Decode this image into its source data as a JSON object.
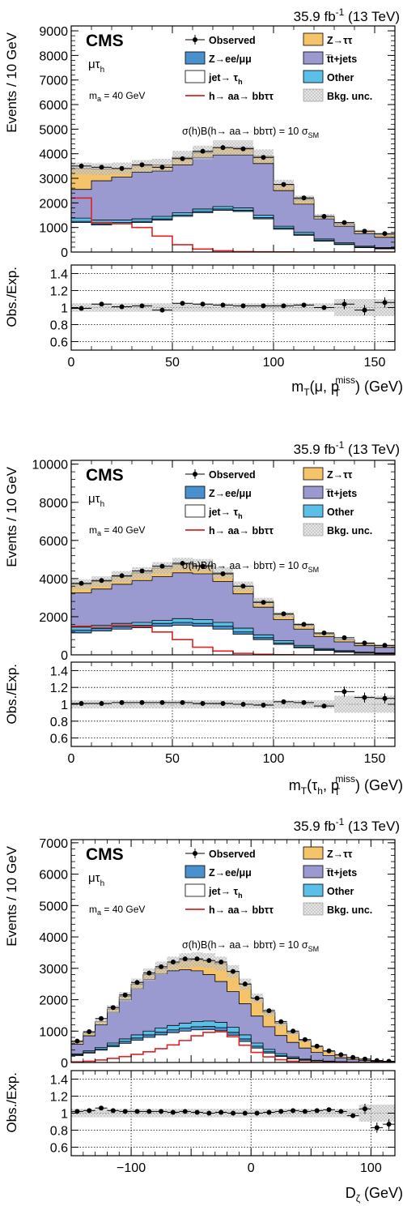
{
  "chart_data": [
    {
      "type": "bar",
      "lumi": "35.9 fb",
      "lumi_sup": "-1",
      "energy": "(13 TeV)",
      "cms": "CMS",
      "channel": "μτ",
      "channel_sub": "h",
      "mass_label": "m",
      "mass_sub": "a",
      "mass_value": " = 40 GeV",
      "xsec_label": "σ(h)B(h→ aa→ bbττ) = 10 σ",
      "xsec_sub": "SM",
      "ylabel": "Events / 10 GeV",
      "ratio_ylabel": "Obs./Exp.",
      "xlabel_parts": [
        "m",
        "T",
        "(μ, ",
        "p",
        "T",
        "miss",
        ") (GeV)"
      ],
      "xlim": [
        0,
        160
      ],
      "ylim": [
        0,
        9200
      ],
      "yticks": [
        0,
        1000,
        2000,
        3000,
        4000,
        5000,
        6000,
        7000,
        8000,
        9000
      ],
      "ratio_ylim": [
        0.5,
        1.5
      ],
      "ratio_yticks": [
        0.6,
        0.8,
        1,
        1.2,
        1.4
      ],
      "xticks": [
        0,
        50,
        100,
        150
      ],
      "bin_edges": [
        0,
        10,
        20,
        30,
        40,
        50,
        60,
        70,
        80,
        90,
        100,
        110,
        120,
        130,
        140,
        150,
        160
      ],
      "stack": {
        "ztt": [
          3400,
          3380,
          3400,
          3500,
          3550,
          3850,
          4050,
          4250,
          4250,
          3900,
          2750,
          2150,
          1450,
          1150,
          850,
          700
        ],
        "tt": [
          2550,
          2900,
          3050,
          3250,
          3300,
          3550,
          3850,
          3950,
          3950,
          3600,
          2500,
          1950,
          1350,
          1050,
          750,
          600
        ],
        "other": [
          1380,
          1300,
          1300,
          1350,
          1450,
          1600,
          1750,
          1850,
          1800,
          1500,
          1050,
          800,
          530,
          380,
          240,
          180
        ],
        "zll": [
          1250,
          1150,
          1200,
          1250,
          1350,
          1500,
          1650,
          1750,
          1700,
          1400,
          980,
          720,
          470,
          330,
          200,
          150
        ],
        "jet": [
          1200,
          1100,
          1150,
          1200,
          1300,
          1450,
          1600,
          1700,
          1650,
          1350,
          930,
          680,
          440,
          300,
          180,
          130
        ]
      },
      "signal": [
        2200,
        1200,
        1150,
        1000,
        650,
        300,
        120,
        50,
        20,
        10,
        5,
        0,
        0,
        0,
        0,
        0
      ],
      "observed": {
        "x": [
          5,
          15,
          25,
          35,
          45,
          55,
          65,
          75,
          85,
          95,
          105,
          115,
          125,
          135,
          145,
          155
        ],
        "y": [
          3500,
          3450,
          3400,
          3550,
          3450,
          3800,
          4100,
          4250,
          4200,
          3850,
          2750,
          2200,
          1450,
          1200,
          850,
          750
        ]
      },
      "ratio": {
        "x": [
          5,
          15,
          25,
          35,
          45,
          55,
          65,
          75,
          85,
          95,
          105,
          115,
          125,
          135,
          145,
          155
        ],
        "y": [
          0.99,
          1.04,
          1.01,
          1.02,
          0.97,
          1.05,
          1.04,
          1.03,
          1.02,
          1.02,
          1.02,
          1.03,
          1.0,
          1.04,
          0.97,
          1.06
        ]
      },
      "legend": [
        {
          "key": "obs",
          "text": "Observed"
        },
        {
          "key": "ztt",
          "text": "Z→ττ"
        },
        {
          "key": "zll",
          "text": "Z→ee/μμ"
        },
        {
          "key": "tt",
          "text": "t̅t+jets"
        },
        {
          "key": "jet",
          "text": "jet→ τ",
          "sub": "h"
        },
        {
          "key": "other",
          "text": "Other"
        },
        {
          "key": "sig",
          "text": "h→ aa→ bbττ"
        },
        {
          "key": "unc",
          "text": "Bkg. unc."
        }
      ]
    },
    {
      "type": "bar",
      "lumi": "35.9 fb",
      "lumi_sup": "-1",
      "energy": "(13 TeV)",
      "cms": "CMS",
      "channel": "μτ",
      "channel_sub": "h",
      "mass_label": "m",
      "mass_sub": "a",
      "mass_value": " = 40 GeV",
      "xsec_label": "σ(h)B(h→ aa→ bbττ) = 10 σ",
      "xsec_sub": "SM",
      "ylabel": "Events / 10 GeV",
      "ratio_ylabel": "Obs./Exp.",
      "xlabel_parts": [
        "m",
        "T",
        "(τ",
        "p",
        "T",
        "miss",
        ") (GeV)"
      ],
      "xlabel_tau_sub": "h",
      "xlim": [
        0,
        160
      ],
      "ylim": [
        0,
        10200
      ],
      "yticks": [
        0,
        2000,
        4000,
        6000,
        8000,
        10000
      ],
      "ratio_ylim": [
        0.5,
        1.5
      ],
      "ratio_yticks": [
        0.6,
        0.8,
        1,
        1.2,
        1.4
      ],
      "xticks": [
        0,
        50,
        100,
        150
      ],
      "bin_edges": [
        0,
        10,
        20,
        30,
        40,
        50,
        60,
        70,
        80,
        90,
        100,
        110,
        120,
        130,
        140,
        150,
        160
      ],
      "stack": {
        "ztt": [
          3700,
          3850,
          4100,
          4300,
          4550,
          4750,
          4700,
          4300,
          3600,
          2800,
          2100,
          1550,
          1100,
          800,
          580,
          480
        ],
        "tt": [
          3250,
          3450,
          3700,
          3900,
          4100,
          4300,
          4250,
          3850,
          3200,
          2500,
          1850,
          1350,
          950,
          680,
          480,
          390
        ],
        "other": [
          1450,
          1550,
          1650,
          1700,
          1800,
          1900,
          1850,
          1700,
          1400,
          1050,
          750,
          500,
          330,
          220,
          140,
          100
        ],
        "zll": [
          1300,
          1380,
          1480,
          1550,
          1650,
          1700,
          1650,
          1500,
          1200,
          900,
          620,
          420,
          270,
          170,
          100,
          70
        ],
        "jet": [
          1150,
          1250,
          1350,
          1420,
          1500,
          1550,
          1500,
          1350,
          1080,
          800,
          550,
          370,
          230,
          140,
          80,
          50
        ]
      },
      "signal": [
        1500,
        1450,
        1550,
        1500,
        1200,
        800,
        400,
        200,
        80,
        30,
        10,
        0,
        0,
        0,
        0,
        0
      ],
      "observed": {
        "x": [
          5,
          15,
          25,
          35,
          45,
          55,
          65,
          75,
          85,
          95,
          105,
          115,
          125,
          135,
          145,
          155
        ],
        "y": [
          3750,
          3900,
          4150,
          4400,
          4650,
          4800,
          4650,
          4250,
          3600,
          2750,
          2150,
          1600,
          1150,
          900,
          620,
          500
        ]
      },
      "ratio": {
        "x": [
          5,
          15,
          25,
          35,
          45,
          55,
          65,
          75,
          85,
          95,
          105,
          115,
          125,
          135,
          145,
          155
        ],
        "y": [
          1.01,
          1.01,
          1.02,
          1.02,
          1.02,
          1.02,
          1.01,
          1.01,
          1.0,
          0.99,
          1.03,
          1.02,
          0.98,
          1.15,
          1.08,
          1.07
        ]
      },
      "legend": [
        {
          "key": "obs",
          "text": "Observed"
        },
        {
          "key": "ztt",
          "text": "Z→ττ"
        },
        {
          "key": "zll",
          "text": "Z→ee/μμ"
        },
        {
          "key": "tt",
          "text": "t̅t+jets"
        },
        {
          "key": "jet",
          "text": "jet→ τ",
          "sub": "h"
        },
        {
          "key": "other",
          "text": "Other"
        },
        {
          "key": "sig",
          "text": "h→ aa→ bbττ"
        },
        {
          "key": "unc",
          "text": "Bkg. unc."
        }
      ]
    },
    {
      "type": "bar",
      "lumi": "35.9 fb",
      "lumi_sup": "-1",
      "energy": "(13 TeV)",
      "cms": "CMS",
      "channel": "μτ",
      "channel_sub": "h",
      "mass_label": "m",
      "mass_sub": "a",
      "mass_value": " = 40 GeV",
      "xsec_label": "σ(h)B(h→ aa→ bbττ) = 10 σ",
      "xsec_sub": "SM",
      "ylabel": "Events / 10 GeV",
      "ratio_ylabel": "Obs./Exp.",
      "xlabel_parts": [
        "D",
        "ζ",
        " (GeV)"
      ],
      "xlim": [
        -150,
        120
      ],
      "ylim": [
        0,
        7100
      ],
      "yticks": [
        0,
        1000,
        2000,
        3000,
        4000,
        5000,
        6000,
        7000
      ],
      "ratio_ylim": [
        0.5,
        1.5
      ],
      "ratio_yticks": [
        0.6,
        0.8,
        1,
        1.2,
        1.4
      ],
      "xticks": [
        -100,
        0,
        100
      ],
      "xtick_labels": [
        "−100",
        "0",
        "100"
      ],
      "bin_edges": [
        -150,
        -140,
        -130,
        -120,
        -110,
        -100,
        -90,
        -80,
        -70,
        -60,
        -50,
        -40,
        -30,
        -20,
        -10,
        0,
        10,
        20,
        30,
        40,
        50,
        60,
        70,
        80,
        90,
        100,
        110,
        120
      ],
      "stack": {
        "ztt": [
          650,
          950,
          1300,
          1700,
          2100,
          2500,
          2800,
          3000,
          3150,
          3250,
          3280,
          3250,
          3150,
          2900,
          2500,
          2050,
          1600,
          1250,
          950,
          700,
          500,
          350,
          230,
          150,
          100,
          60,
          40
        ],
        "tt": [
          580,
          850,
          1200,
          1600,
          2000,
          2350,
          2650,
          2820,
          2920,
          2960,
          2920,
          2800,
          2580,
          2260,
          1870,
          1480,
          1140,
          860,
          640,
          460,
          320,
          220,
          150,
          100,
          65,
          40,
          25
        ],
        "other": [
          270,
          370,
          480,
          620,
          750,
          880,
          1000,
          1100,
          1180,
          1250,
          1300,
          1320,
          1280,
          1120,
          880,
          620,
          420,
          280,
          180,
          110,
          70,
          45,
          30,
          20,
          12,
          8,
          5
        ],
        "zll": [
          240,
          330,
          430,
          550,
          670,
          780,
          880,
          970,
          1040,
          1100,
          1140,
          1150,
          1110,
          960,
          750,
          520,
          340,
          220,
          140,
          85,
          55,
          35,
          22,
          15,
          9,
          6,
          4
        ],
        "jet": [
          220,
          300,
          390,
          500,
          610,
          710,
          800,
          880,
          950,
          1000,
          1040,
          1050,
          1010,
          870,
          670,
          460,
          300,
          190,
          120,
          70,
          45,
          28,
          18,
          12,
          7,
          5,
          3
        ],
        "unc_up_only": []
      },
      "signal": [
        20,
        40,
        80,
        130,
        190,
        260,
        340,
        440,
        560,
        700,
        850,
        960,
        980,
        820,
        550,
        320,
        180,
        90,
        40,
        15,
        5,
        0,
        0,
        0,
        0,
        0,
        0
      ],
      "observed": {
        "x": [
          -145,
          -135,
          -125,
          -115,
          -105,
          -95,
          -85,
          -75,
          -65,
          -55,
          -45,
          -35,
          -25,
          -15,
          -5,
          5,
          15,
          25,
          35,
          45,
          55,
          65,
          75,
          85,
          95,
          105,
          115
        ],
        "y": [
          680,
          980,
          1400,
          1750,
          2150,
          2550,
          2850,
          3050,
          3200,
          3300,
          3300,
          3250,
          3200,
          2900,
          2500,
          2050,
          1650,
          1300,
          1000,
          730,
          520,
          370,
          250,
          160,
          110,
          60,
          40
        ]
      },
      "ratio": {
        "x": [
          -145,
          -135,
          -125,
          -115,
          -105,
          -95,
          -85,
          -75,
          -65,
          -55,
          -45,
          -35,
          -25,
          -15,
          -5,
          5,
          15,
          25,
          35,
          45,
          55,
          65,
          75,
          85,
          95,
          105,
          115
        ],
        "y": [
          1.02,
          1.03,
          1.06,
          1.03,
          1.02,
          1.02,
          1.02,
          1.02,
          1.01,
          1.02,
          1.01,
          1.0,
          1.01,
          1.0,
          1.0,
          1.0,
          1.01,
          1.02,
          1.03,
          1.02,
          1.03,
          1.04,
          1.02,
          0.97,
          1.05,
          0.83,
          0.87
        ]
      },
      "legend": [
        {
          "key": "obs",
          "text": "Observed"
        },
        {
          "key": "ztt",
          "text": "Z→ττ"
        },
        {
          "key": "zll",
          "text": "Z→ee/μμ"
        },
        {
          "key": "tt",
          "text": "t̅t+jets"
        },
        {
          "key": "jet",
          "text": "jet→ τ",
          "sub": "h"
        },
        {
          "key": "other",
          "text": "Other"
        },
        {
          "key": "sig",
          "text": "h→ aa→ bbττ"
        },
        {
          "key": "unc",
          "text": "Bkg. unc."
        }
      ]
    }
  ],
  "colors": {
    "ztt": "#f5c369",
    "zll": "#4a90cd",
    "tt": "#9a9ad0",
    "jet": "#ffffff",
    "other": "#5bc0e8",
    "signal": "#dd2222",
    "unc": "#aaaaaa"
  }
}
